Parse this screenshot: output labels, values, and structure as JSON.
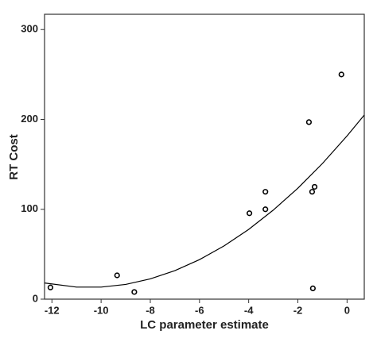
{
  "chart_data": {
    "type": "scatter",
    "x_label": "LC parameter estimate",
    "y_label": "RT Cost",
    "series": [
      {
        "type": "scatter",
        "color": "#000000",
        "x": [
          -12.06,
          -9.35,
          -8.65,
          -3.97,
          -3.32,
          -3.32,
          -1.55,
          -1.42,
          -1.32,
          -1.39,
          -0.23
        ],
        "values": [
          13,
          26.5,
          8,
          95.6,
          100,
          119.5,
          197,
          119.5,
          125,
          12,
          250
        ]
      },
      {
        "type": "line",
        "color": "#000000",
        "x": [
          -12.3,
          -11,
          -10,
          -9,
          -8,
          -7,
          -6,
          -5,
          -4,
          -3,
          -2,
          -1,
          0,
          0.7
        ],
        "values": [
          18,
          13.4,
          13.4,
          16.4,
          22.6,
          31.7,
          44,
          59.3,
          77.6,
          99.1,
          123.5,
          151,
          181.7,
          204.9
        ]
      }
    ],
    "xlim": [
      -12.3,
      0.7
    ],
    "ylim": [
      0,
      317
    ],
    "xticks": [
      -12,
      -10,
      -8,
      -6,
      -4,
      -2,
      0
    ],
    "yticks": [
      0,
      100,
      200,
      300
    ],
    "grid": false
  }
}
